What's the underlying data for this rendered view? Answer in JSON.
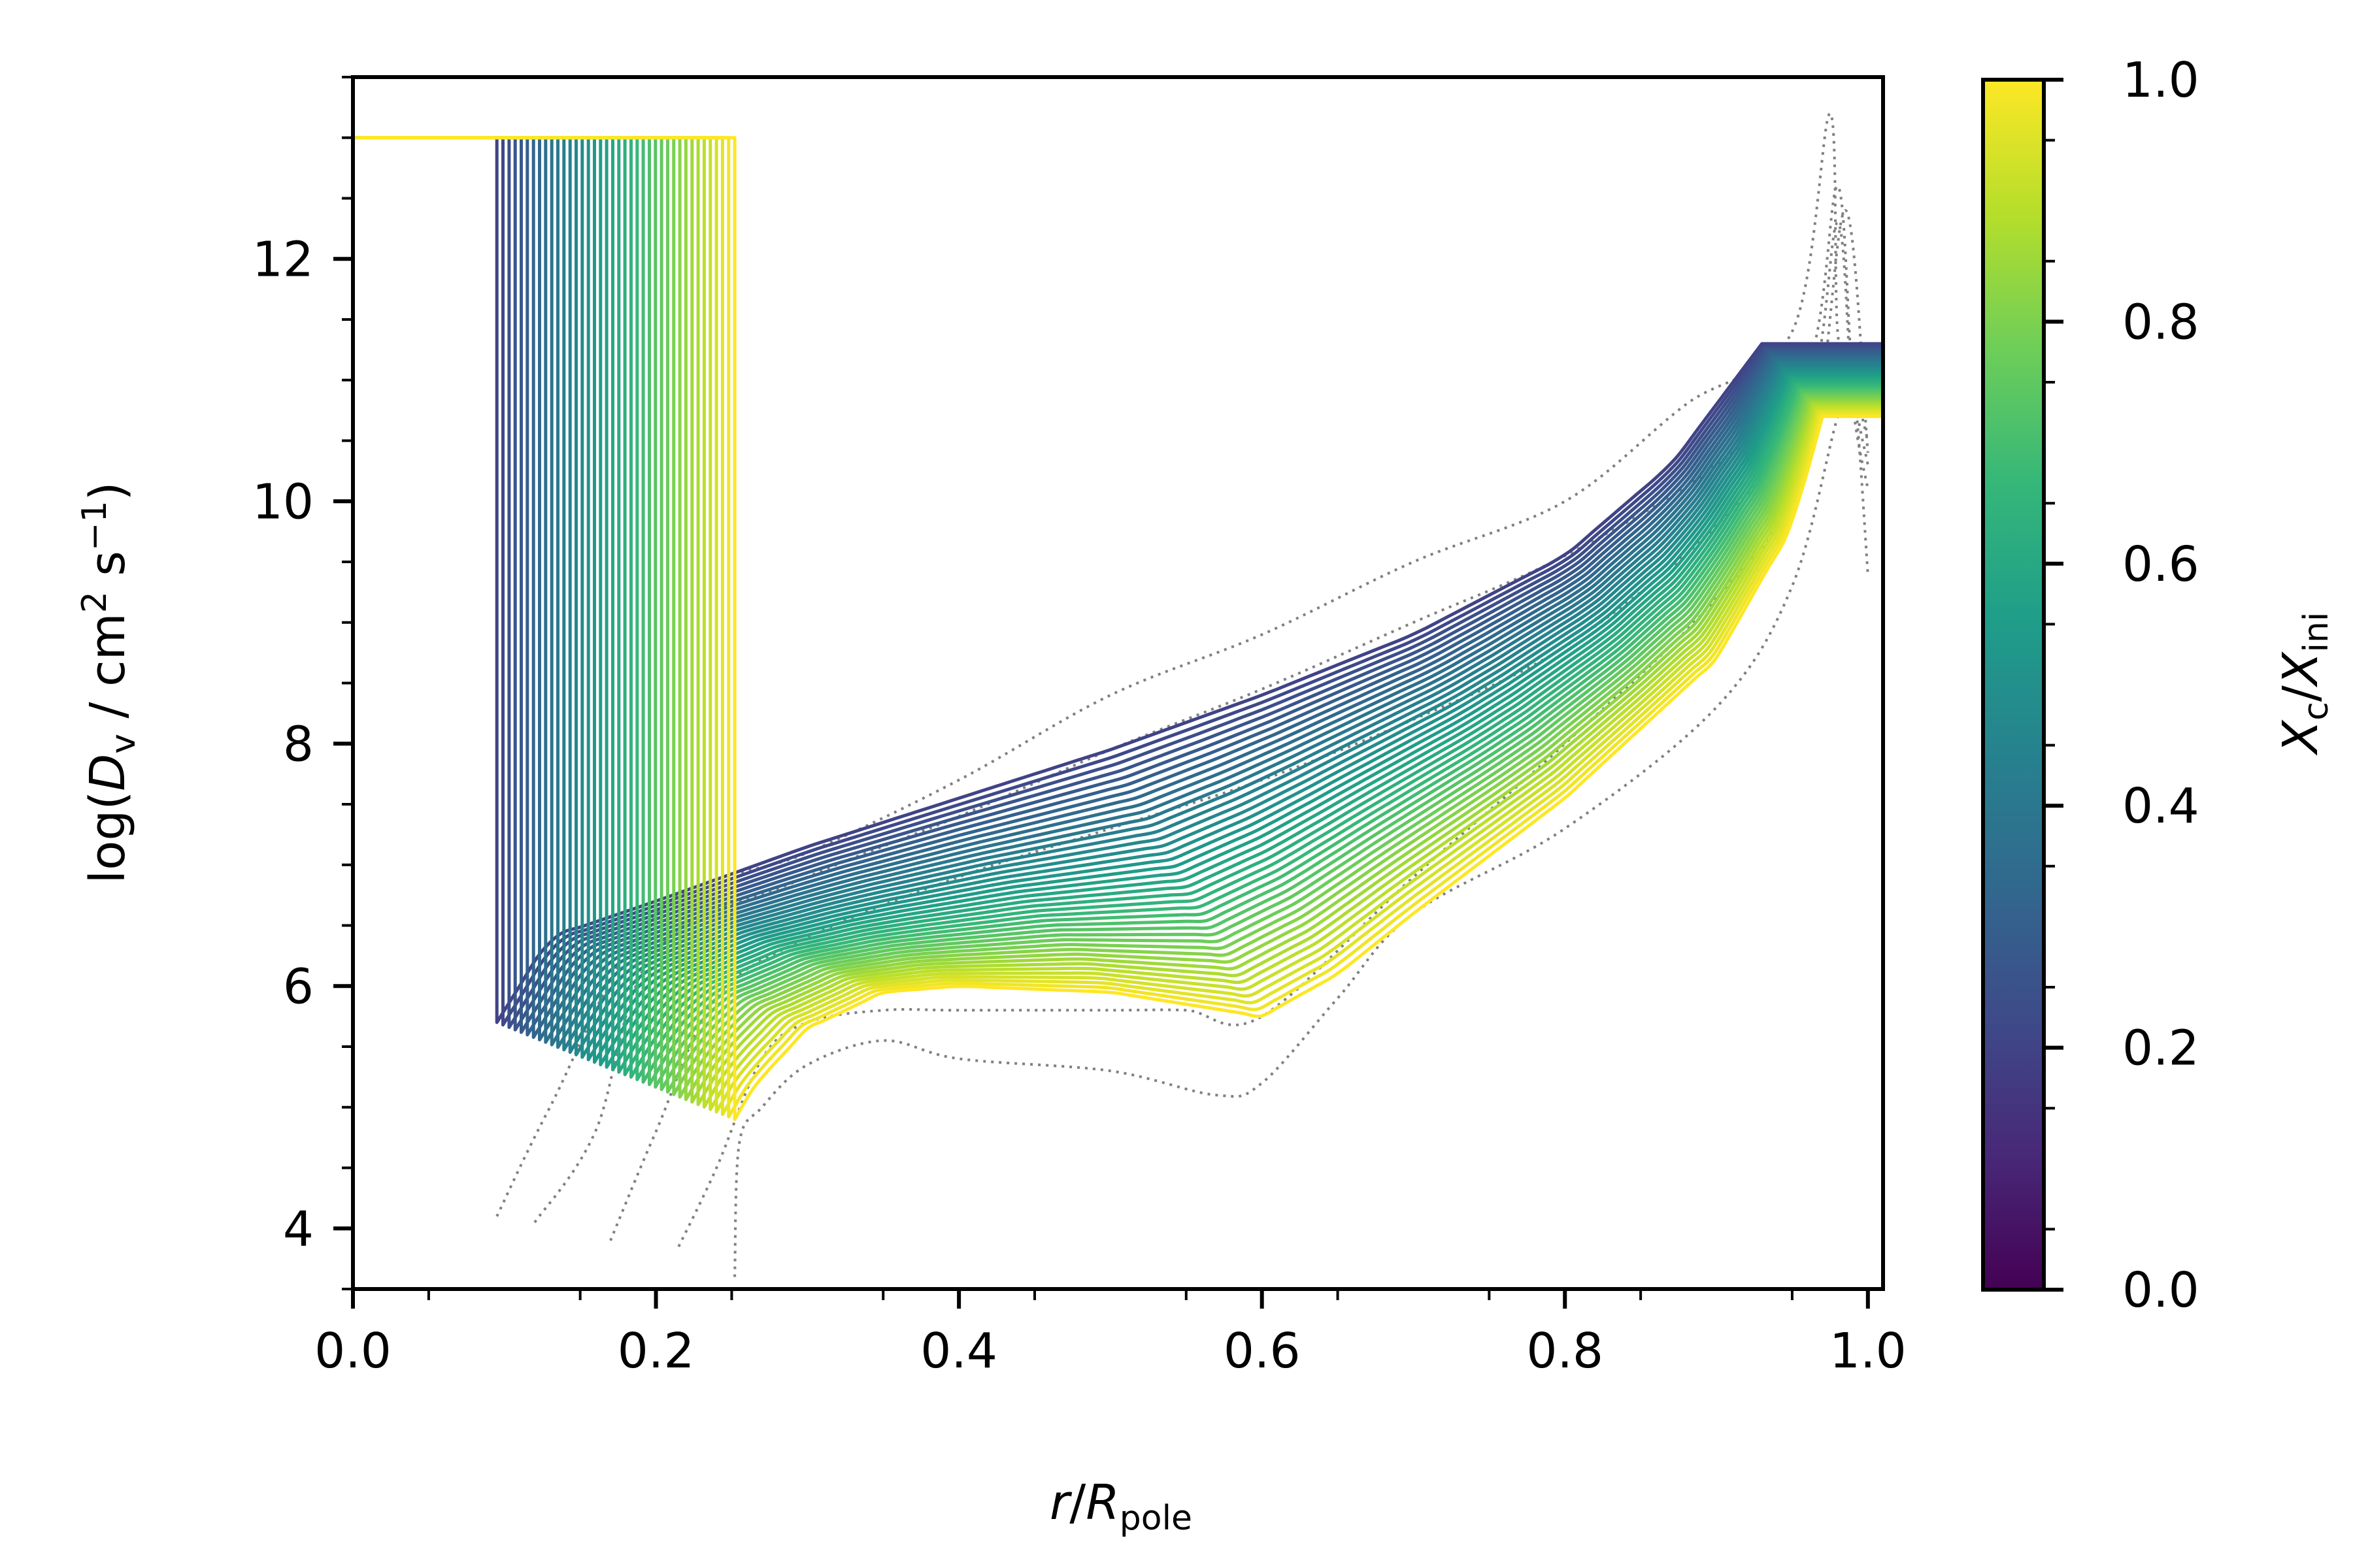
{
  "chart_data": {
    "type": "line",
    "xlim": [
      0.0,
      1.01
    ],
    "ylim": [
      3.5,
      13.5
    ],
    "grid": false,
    "x_ticks": [
      {
        "value": 0.0,
        "label": "0.0"
      },
      {
        "value": 0.2,
        "label": "0.2"
      },
      {
        "value": 0.4,
        "label": "0.4"
      },
      {
        "value": 0.6,
        "label": "0.6"
      },
      {
        "value": 0.8,
        "label": "0.8"
      },
      {
        "value": 1.0,
        "label": "1.0"
      }
    ],
    "y_ticks": [
      {
        "value": 4,
        "label": "4"
      },
      {
        "value": 6,
        "label": "6"
      },
      {
        "value": 8,
        "label": "8"
      },
      {
        "value": 10,
        "label": "10"
      },
      {
        "value": 12,
        "label": "12"
      }
    ],
    "colorbar": {
      "colormap": "viridis",
      "range": [
        0.0,
        1.0
      ],
      "ticks": [
        {
          "value": 0.0,
          "label": "0.0"
        },
        {
          "value": 0.2,
          "label": "0.2"
        },
        {
          "value": 0.4,
          "label": "0.4"
        },
        {
          "value": 0.6,
          "label": "0.6"
        },
        {
          "value": 0.8,
          "label": "0.8"
        },
        {
          "value": 1.0,
          "label": "1.0"
        }
      ]
    },
    "family": {
      "parameter": "Xc/Xini",
      "n_profiles": 40,
      "parameter_range": [
        0.2,
        1.0
      ],
      "core_plateau_logD": 13.0,
      "core_edge_x_range": [
        0.095,
        0.252
      ],
      "core_edge_bottom_logD_range": [
        5.7,
        4.9
      ],
      "surface_plateau_logD_range": [
        11.3,
        10.7
      ],
      "surface_ramp_start_x_range": [
        0.93,
        0.97
      ],
      "profiles_at_parameter_min": {
        "x": [
          0.095,
          0.13,
          0.2,
          0.3,
          0.4,
          0.5,
          0.6,
          0.7,
          0.8,
          0.87,
          0.93
        ],
        "logD": [
          5.7,
          6.4,
          6.7,
          7.15,
          7.55,
          7.95,
          8.4,
          8.9,
          9.55,
          10.3,
          11.3
        ]
      },
      "profiles_at_parameter_max": {
        "x": [
          0.252,
          0.27,
          0.3,
          0.35,
          0.4,
          0.5,
          0.55,
          0.6,
          0.65,
          0.7,
          0.8,
          0.9,
          0.95,
          0.97
        ],
        "logD": [
          4.95,
          5.25,
          5.65,
          5.95,
          6.0,
          5.95,
          5.85,
          5.75,
          6.1,
          6.6,
          7.55,
          8.7,
          9.8,
          10.7
        ]
      }
    },
    "reference_profiles_dotted": {
      "color": "#808080",
      "series": [
        {
          "x": [
            0.095,
            0.13,
            0.2,
            0.3,
            0.4,
            0.5,
            0.6,
            0.7,
            0.8,
            0.88,
            0.95,
            0.975,
            0.98,
            0.99,
            1.0
          ],
          "logD": [
            4.1,
            5.0,
            6.6,
            7.1,
            7.7,
            8.4,
            8.9,
            9.5,
            10.0,
            10.8,
            11.4,
            13.2,
            11.4,
            11.0,
            10.5
          ]
        },
        {
          "x": [
            0.12,
            0.16,
            0.2,
            0.3,
            0.4,
            0.5,
            0.6,
            0.7,
            0.8,
            0.9,
            0.96,
            0.98,
            0.99,
            1.0
          ],
          "logD": [
            4.05,
            4.8,
            6.3,
            6.9,
            7.4,
            7.95,
            8.45,
            9.0,
            9.55,
            10.3,
            11.1,
            12.6,
            11.0,
            10.3
          ]
        },
        {
          "x": [
            0.17,
            0.2,
            0.24,
            0.3,
            0.4,
            0.5,
            0.6,
            0.7,
            0.8,
            0.9,
            0.96,
            0.98,
            0.99,
            1.0
          ],
          "logD": [
            3.9,
            4.8,
            5.9,
            6.4,
            6.9,
            7.3,
            7.7,
            8.2,
            8.8,
            9.8,
            10.8,
            12.3,
            10.8,
            10.1
          ]
        },
        {
          "x": [
            0.215,
            0.24,
            0.27,
            0.3,
            0.35,
            0.4,
            0.5,
            0.55,
            0.6,
            0.7,
            0.8,
            0.9,
            0.96,
            0.985,
            1.0
          ],
          "logD": [
            3.85,
            4.5,
            5.4,
            5.7,
            5.8,
            5.8,
            5.8,
            5.8,
            5.75,
            6.9,
            8.0,
            9.2,
            10.3,
            12.4,
            10.4
          ]
        },
        {
          "x": [
            0.252,
            0.255,
            0.27,
            0.3,
            0.35,
            0.4,
            0.5,
            0.57,
            0.6,
            0.65,
            0.7,
            0.8,
            0.9,
            0.95,
            0.98,
            0.99,
            1.0
          ],
          "logD": [
            3.6,
            4.7,
            5.0,
            5.35,
            5.55,
            5.4,
            5.3,
            5.1,
            5.2,
            5.9,
            6.6,
            7.3,
            8.3,
            9.3,
            10.7,
            11.0,
            9.4
          ]
        }
      ]
    }
  }
}
